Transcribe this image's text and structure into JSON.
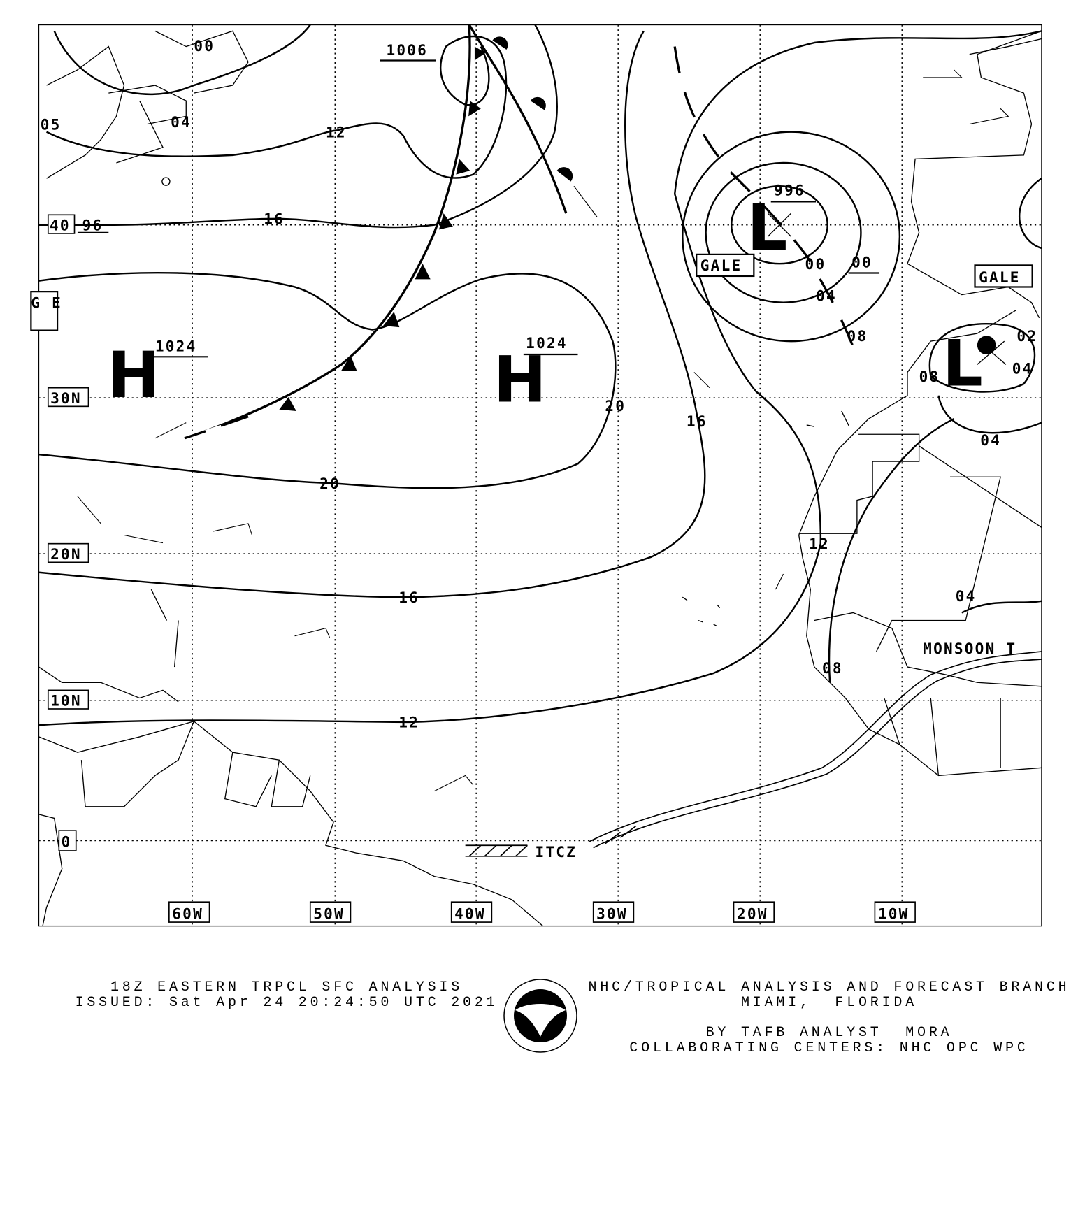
{
  "map": {
    "longitude_labels": [
      "60W",
      "50W",
      "40W",
      "30W",
      "20W",
      "10W"
    ],
    "latitude_labels": [
      "40",
      "30N",
      "20N",
      "10N",
      "0"
    ],
    "isobar_labels": [
      "00",
      "1006",
      "04",
      "05",
      "12",
      "96",
      "16",
      "20",
      "16",
      "20",
      "16",
      "12",
      "00",
      "00",
      "04",
      "08",
      "02",
      "04",
      "08",
      "04",
      "12",
      "04",
      "08"
    ],
    "highs": [
      {
        "symbol": "H",
        "pressure": "1024"
      },
      {
        "symbol": "H",
        "pressure": "1024"
      }
    ],
    "lows": [
      {
        "symbol": "L",
        "pressure": "996"
      },
      {
        "symbol": "L"
      }
    ],
    "warnings": [
      "GALE",
      "GALE"
    ],
    "partial_warning": "G E",
    "itcz_label": "ITCZ",
    "monsoon_label": "MONSOON T"
  },
  "logo": {
    "text": "NOAA"
  },
  "footer": {
    "title": "18Z EASTERN TRPCL SFC ANALYSIS",
    "issued": "ISSUED: Sat Apr 24 20:24:50 UTC 2021",
    "office": "NHC/TROPICAL ANALYSIS AND FORECAST BRANCH",
    "location": "MIAMI,  FLORIDA",
    "analyst": "BY TAFB ANALYST  MORA",
    "collaborating": "COLLABORATING CENTERS: NHC OPC WPC"
  }
}
